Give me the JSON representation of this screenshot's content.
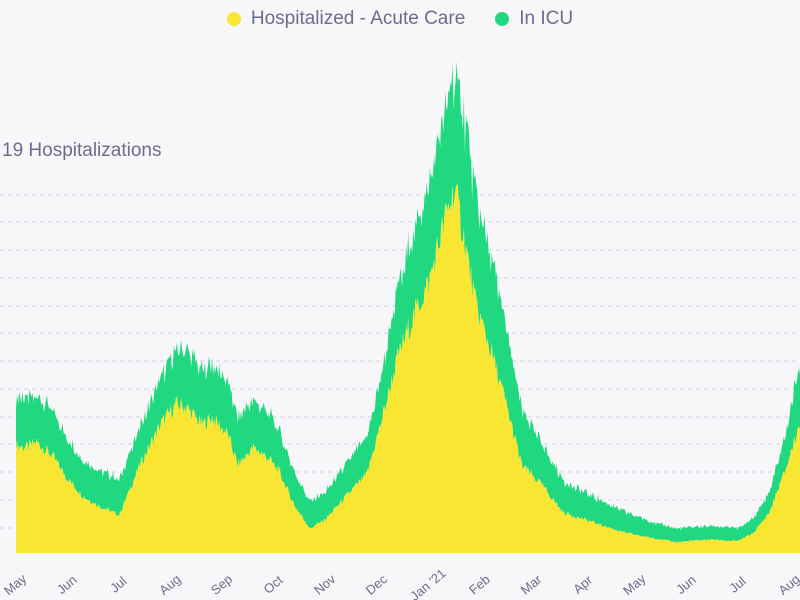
{
  "chart_data": {
    "type": "area",
    "stacked": true,
    "title": "19 Hospitalizations",
    "legend_position": "top-center",
    "grid": true,
    "months": [
      "May",
      "Jun",
      "Jul",
      "Aug",
      "Sep",
      "Oct",
      "Nov",
      "Dec",
      "Jan '21",
      "Feb",
      "Mar",
      "Apr",
      "May",
      "Jun",
      "Jul",
      "Aug"
    ],
    "series": [
      {
        "name": "Hospitalized - Acute Care",
        "color": "#f8e632",
        "points": [
          [
            0,
            80
          ],
          [
            0.2,
            78
          ],
          [
            0.4,
            82
          ],
          [
            0.7,
            72
          ],
          [
            1.0,
            55
          ],
          [
            1.3,
            42
          ],
          [
            1.6,
            35
          ],
          [
            2.0,
            28
          ],
          [
            2.4,
            65
          ],
          [
            2.8,
            95
          ],
          [
            3.1,
            110
          ],
          [
            3.3,
            108
          ],
          [
            3.6,
            95
          ],
          [
            3.8,
            100
          ],
          [
            4.1,
            88
          ],
          [
            4.3,
            65
          ],
          [
            4.6,
            78
          ],
          [
            4.9,
            70
          ],
          [
            5.1,
            60
          ],
          [
            5.4,
            35
          ],
          [
            5.7,
            18
          ],
          [
            6.0,
            25
          ],
          [
            6.4,
            42
          ],
          [
            6.8,
            58
          ],
          [
            7.1,
            100
          ],
          [
            7.4,
            145
          ],
          [
            7.7,
            175
          ],
          [
            8.0,
            200
          ],
          [
            8.3,
            245
          ],
          [
            8.5,
            270
          ],
          [
            8.7,
            230
          ],
          [
            8.9,
            185
          ],
          [
            9.2,
            150
          ],
          [
            9.5,
            110
          ],
          [
            9.8,
            65
          ],
          [
            10.2,
            50
          ],
          [
            10.6,
            30
          ],
          [
            11.0,
            25
          ],
          [
            11.4,
            20
          ],
          [
            11.8,
            15
          ],
          [
            12.2,
            12
          ],
          [
            12.5,
            10
          ],
          [
            12.8,
            8
          ],
          [
            13.1,
            9
          ],
          [
            13.5,
            10
          ],
          [
            13.8,
            9
          ],
          [
            14.0,
            9
          ],
          [
            14.3,
            15
          ],
          [
            14.6,
            30
          ],
          [
            14.9,
            60
          ],
          [
            15.1,
            85
          ],
          [
            15.3,
            110
          ]
        ]
      },
      {
        "name": "In ICU",
        "color": "#1fd87f",
        "points": [
          [
            0,
            35
          ],
          [
            0.2,
            35
          ],
          [
            0.4,
            35
          ],
          [
            0.7,
            33
          ],
          [
            1.0,
            30
          ],
          [
            1.3,
            28
          ],
          [
            1.6,
            27
          ],
          [
            2.0,
            26
          ],
          [
            2.4,
            28
          ],
          [
            2.8,
            33
          ],
          [
            3.1,
            40
          ],
          [
            3.3,
            42
          ],
          [
            3.6,
            40
          ],
          [
            3.8,
            40
          ],
          [
            4.1,
            38
          ],
          [
            4.3,
            35
          ],
          [
            4.6,
            35
          ],
          [
            4.9,
            33
          ],
          [
            5.1,
            30
          ],
          [
            5.4,
            25
          ],
          [
            5.7,
            20
          ],
          [
            6.0,
            20
          ],
          [
            6.4,
            23
          ],
          [
            6.8,
            27
          ],
          [
            7.1,
            35
          ],
          [
            7.4,
            50
          ],
          [
            7.7,
            62
          ],
          [
            8.0,
            70
          ],
          [
            8.3,
            78
          ],
          [
            8.5,
            85
          ],
          [
            8.7,
            90
          ],
          [
            8.9,
            80
          ],
          [
            9.2,
            70
          ],
          [
            9.5,
            55
          ],
          [
            9.8,
            40
          ],
          [
            10.2,
            30
          ],
          [
            10.6,
            24
          ],
          [
            11.0,
            20
          ],
          [
            11.4,
            18
          ],
          [
            11.8,
            15
          ],
          [
            12.2,
            13
          ],
          [
            12.5,
            11
          ],
          [
            12.8,
            10
          ],
          [
            13.1,
            10
          ],
          [
            13.5,
            10
          ],
          [
            13.8,
            10
          ],
          [
            14.0,
            9
          ],
          [
            14.3,
            11
          ],
          [
            14.6,
            15
          ],
          [
            14.9,
            25
          ],
          [
            15.1,
            40
          ],
          [
            15.3,
            55
          ]
        ]
      }
    ]
  }
}
